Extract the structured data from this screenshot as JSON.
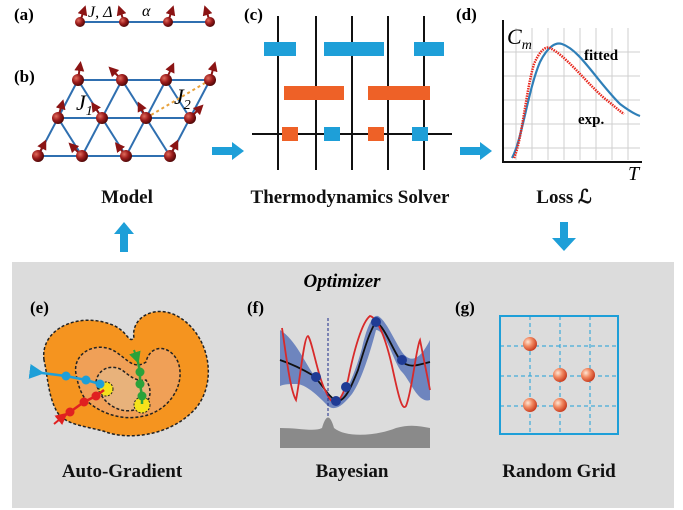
{
  "panels": {
    "a": "(a)",
    "b": "(b)",
    "c": "(c)",
    "d": "(d)",
    "e": "(e)",
    "f": "(f)",
    "g": "(g)"
  },
  "model": {
    "chain_params": "J, Δ",
    "chain_alpha": "α",
    "j1_symbol": "J",
    "j1_sub": "1",
    "j2_symbol": "J",
    "j2_sub": "2",
    "caption": "Model"
  },
  "solver": {
    "caption": "Thermodynamics Solver"
  },
  "loss": {
    "ylabel_symbol": "C",
    "ylabel_sub": "m",
    "xlabel": "T",
    "fitted_label": "fitted",
    "exp_label": "exp.",
    "caption": "Loss ℒ"
  },
  "optimizer": {
    "title": "Optimizer",
    "auto_gradient": "Auto-Gradient",
    "bayesian": "Bayesian",
    "random_grid": "Random Grid"
  },
  "colors": {
    "blue": "#1e9fd8",
    "orange": "#ee6127",
    "spin": "#8b1414",
    "lattice": "#2f6fb0",
    "optimizer_bg": "#dcdcdc",
    "fit_curve": "#2f7fb8",
    "exp_curve": "#e8281e"
  }
}
